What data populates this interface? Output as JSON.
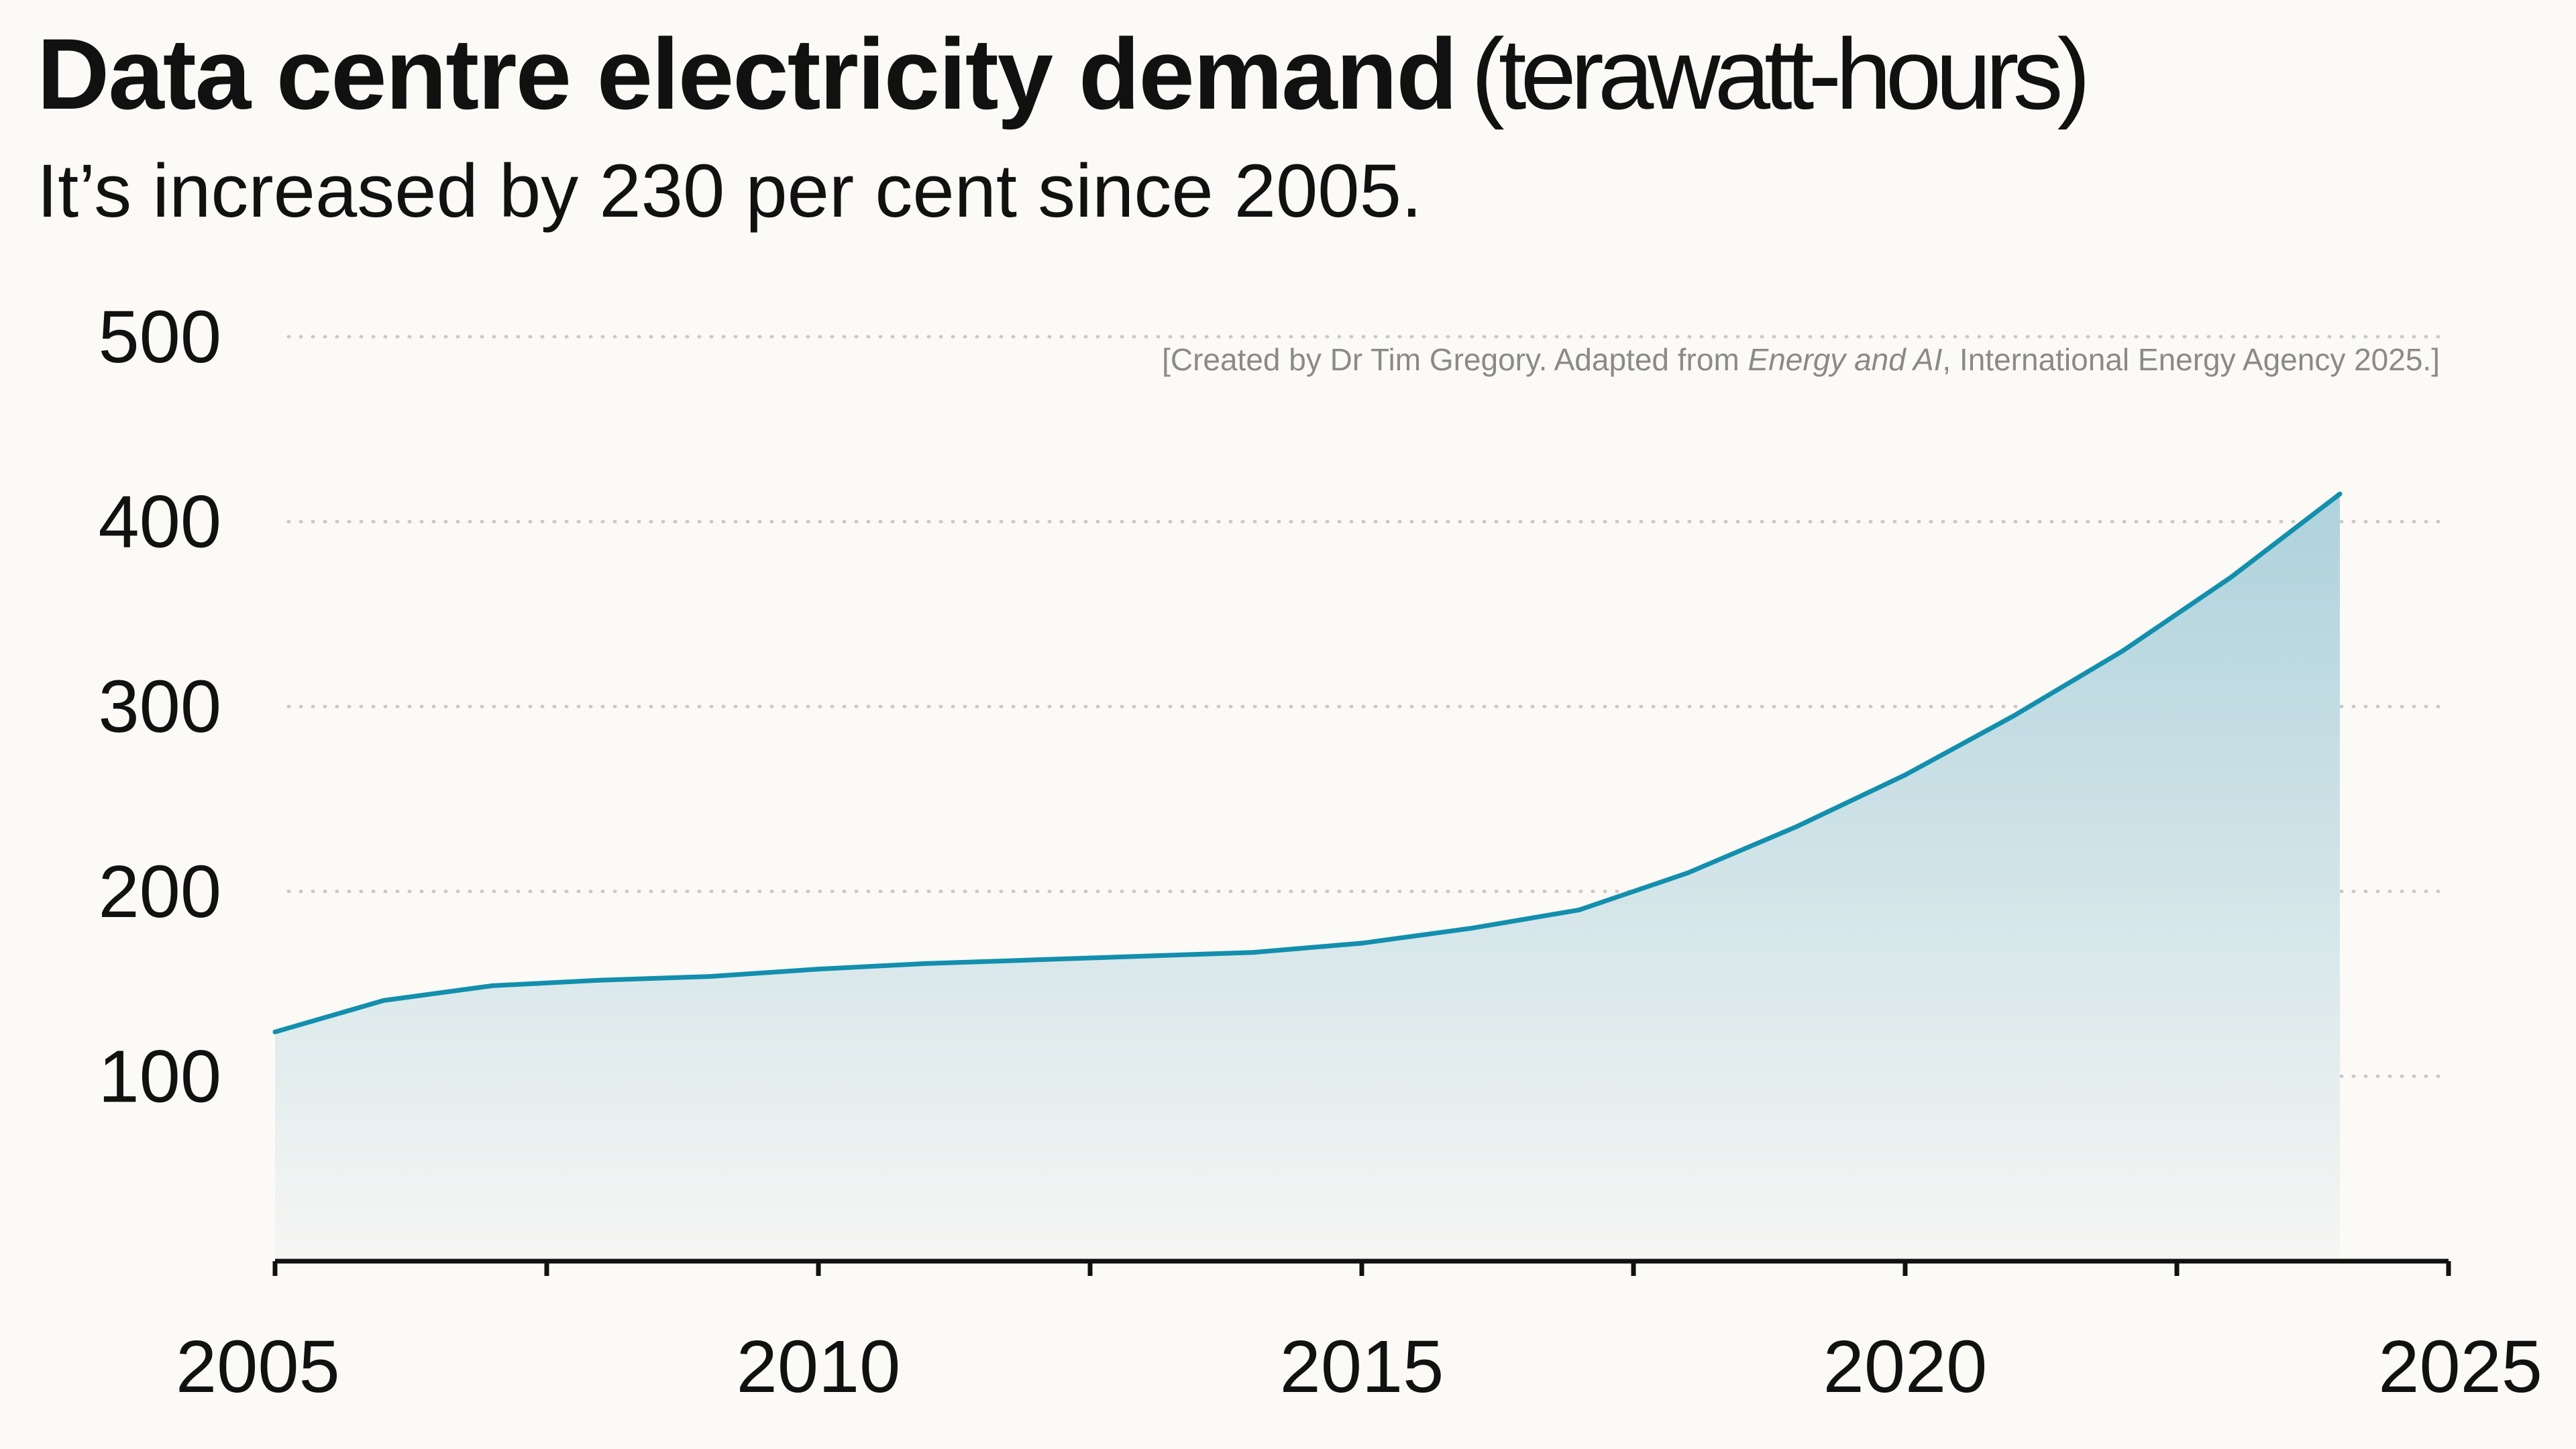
{
  "header": {
    "title": "Data centre electricity demand",
    "title_unit": "(terawatt-hours)",
    "subtitle": "It’s increased by 230 per cent since 2005."
  },
  "credit": {
    "prefix": "[Created by Dr Tim Gregory. Adapted from ",
    "source_italic": "Energy and AI",
    "suffix": ", International Energy Agency 2025.]"
  },
  "colors": {
    "line": "#138fae",
    "fill_top": "#aed2dc",
    "fill_bottom": "#f6f6f4",
    "grid": "#c9c9c9",
    "axis": "#111111",
    "background": "#fbfaf6"
  },
  "chart_data": {
    "type": "area",
    "title": "Data centre electricity demand",
    "ylabel": "",
    "xlabel": "",
    "xlim": [
      2005,
      2025
    ],
    "ylim": [
      0,
      500
    ],
    "xticks": [
      2005,
      2010,
      2015,
      2020,
      2025
    ],
    "yticks": [
      100,
      200,
      300,
      400,
      500
    ],
    "grid": "horizontal-dotted",
    "x": [
      2005.0,
      2006.0,
      2007.0,
      2008.0,
      2009.0,
      2010.0,
      2011.0,
      2012.0,
      2013.0,
      2014.0,
      2015.0,
      2016.0,
      2017.0,
      2018.0,
      2019.0,
      2020.0,
      2021.0,
      2022.0,
      2023.0,
      2024.0
    ],
    "values": [
      124,
      141,
      149,
      152,
      154,
      158,
      161,
      163,
      165,
      167,
      172,
      180,
      190,
      210,
      235,
      263,
      295,
      330,
      370,
      415
    ]
  }
}
